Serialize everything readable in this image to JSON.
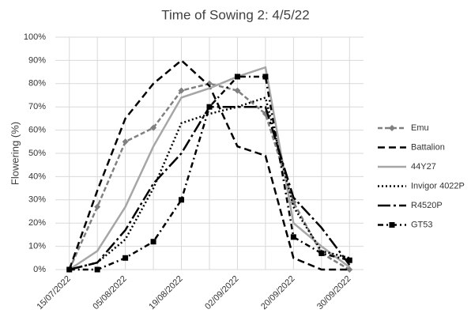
{
  "chart_data": {
    "type": "line",
    "title": "Time of Sowing 2: 4/5/22",
    "y_label": "Flowering (%)",
    "categories": [
      "15/07/2022",
      null,
      "05/08/2022",
      null,
      "19/08/2022",
      null,
      "02/09/2022",
      null,
      "20/09/2022",
      null,
      "30/09/2022"
    ],
    "ylim": [
      0,
      100
    ],
    "yticks": [
      {
        "value": 0,
        "label": "0%"
      },
      {
        "value": 10,
        "label": "10%"
      },
      {
        "value": 20,
        "label": "20%"
      },
      {
        "value": 30,
        "label": "30%"
      },
      {
        "value": 40,
        "label": "40%"
      },
      {
        "value": 50,
        "label": "50%"
      },
      {
        "value": 60,
        "label": "60%"
      },
      {
        "value": 70,
        "label": "70%"
      },
      {
        "value": 80,
        "label": "80%"
      },
      {
        "value": 90,
        "label": "90%"
      },
      {
        "value": 100,
        "label": "100%"
      }
    ],
    "grid": true,
    "legend": "right",
    "series": [
      {
        "name": "Emu",
        "color": "#808080",
        "dash": "6,3",
        "marker": "diamond",
        "values": [
          0,
          27,
          55,
          61,
          77,
          80,
          77,
          67,
          29,
          7,
          0
        ]
      },
      {
        "name": "Battalion",
        "color": "#000000",
        "dash": "9,5",
        "values": [
          0,
          34,
          65,
          80,
          90,
          79,
          53,
          49,
          5,
          0,
          0
        ]
      },
      {
        "name": "44Y27",
        "color": "#a6a6a6",
        "values": [
          0,
          8,
          27,
          53,
          74,
          78,
          83,
          87,
          20,
          10,
          1
        ]
      },
      {
        "name": "Invigor 4022P",
        "color": "#000000",
        "dash": "2,3",
        "values": [
          0,
          3,
          13,
          35,
          63,
          67,
          70,
          74,
          27,
          8,
          5
        ]
      },
      {
        "name": "R4520P",
        "color": "#000000",
        "dash": "16,4,3,4",
        "values": [
          0,
          3,
          17,
          37,
          50,
          70,
          70,
          70,
          31,
          18,
          2
        ]
      },
      {
        "name": "GT53",
        "color": "#000000",
        "dash": "7,4,2,4",
        "marker": "square",
        "values": [
          0,
          0,
          5,
          12,
          30,
          70,
          83,
          83,
          14,
          7,
          4
        ]
      }
    ]
  }
}
